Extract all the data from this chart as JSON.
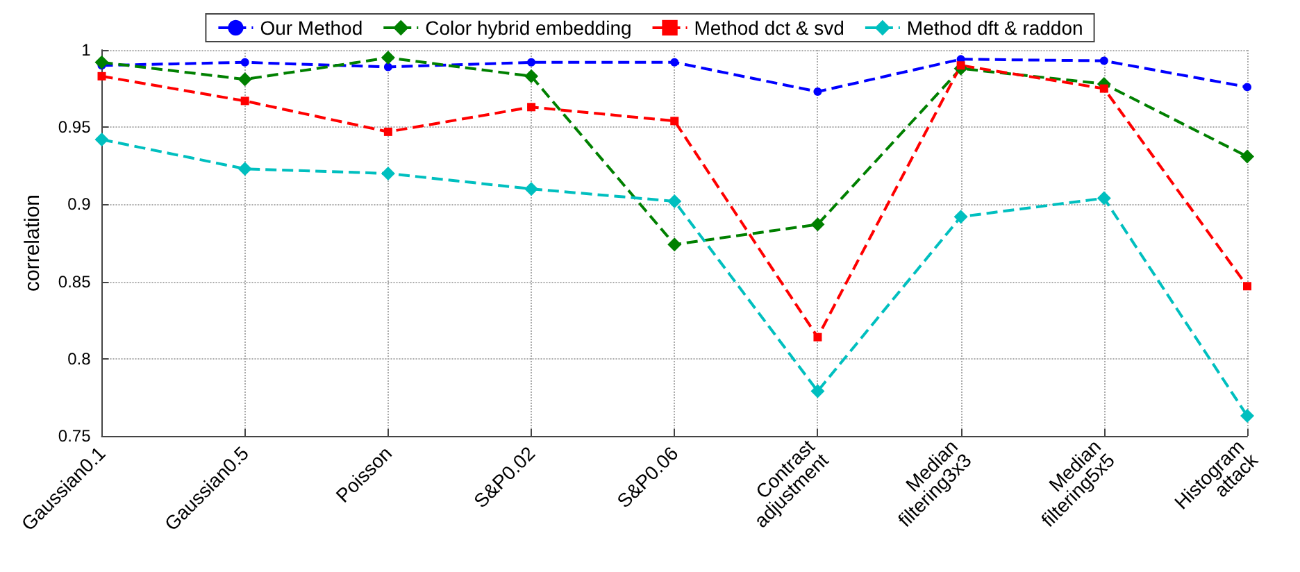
{
  "chart_data": {
    "type": "line",
    "ylabel": "correlation",
    "categories": [
      "Gaussian0.1",
      "Gaussian0.5",
      "Poisson",
      "S&P0.02",
      "S&P0.06",
      "Contrast\nadjustment",
      "Median\nfiltering3x3",
      "Median\nfiltering5x5",
      "Histogram\nattack"
    ],
    "series": [
      {
        "name": "Our Method",
        "color": "#0000ff",
        "marker": "circle",
        "values": [
          0.99,
          0.992,
          0.989,
          0.992,
          0.992,
          0.973,
          0.994,
          0.993,
          0.976
        ]
      },
      {
        "name": "Color hybrid embedding",
        "color": "#008000",
        "marker": "diamond",
        "values": [
          0.992,
          0.981,
          0.995,
          0.983,
          0.874,
          0.887,
          0.988,
          0.978,
          0.931
        ]
      },
      {
        "name": "Method dct & svd",
        "color": "#ff0000",
        "marker": "square",
        "values": [
          0.983,
          0.967,
          0.947,
          0.963,
          0.954,
          0.814,
          0.99,
          0.975,
          0.847
        ]
      },
      {
        "name": "Method dft & raddon",
        "color": "#00bfbf",
        "marker": "diamond",
        "values": [
          0.942,
          0.923,
          0.92,
          0.91,
          0.902,
          0.779,
          0.892,
          0.904,
          0.763
        ]
      }
    ],
    "ylim": [
      0.75,
      1
    ],
    "yticks": [
      0.75,
      0.8,
      0.85,
      0.9,
      0.95,
      1
    ],
    "grid": true,
    "legend": "top",
    "line_style": "dashed"
  }
}
